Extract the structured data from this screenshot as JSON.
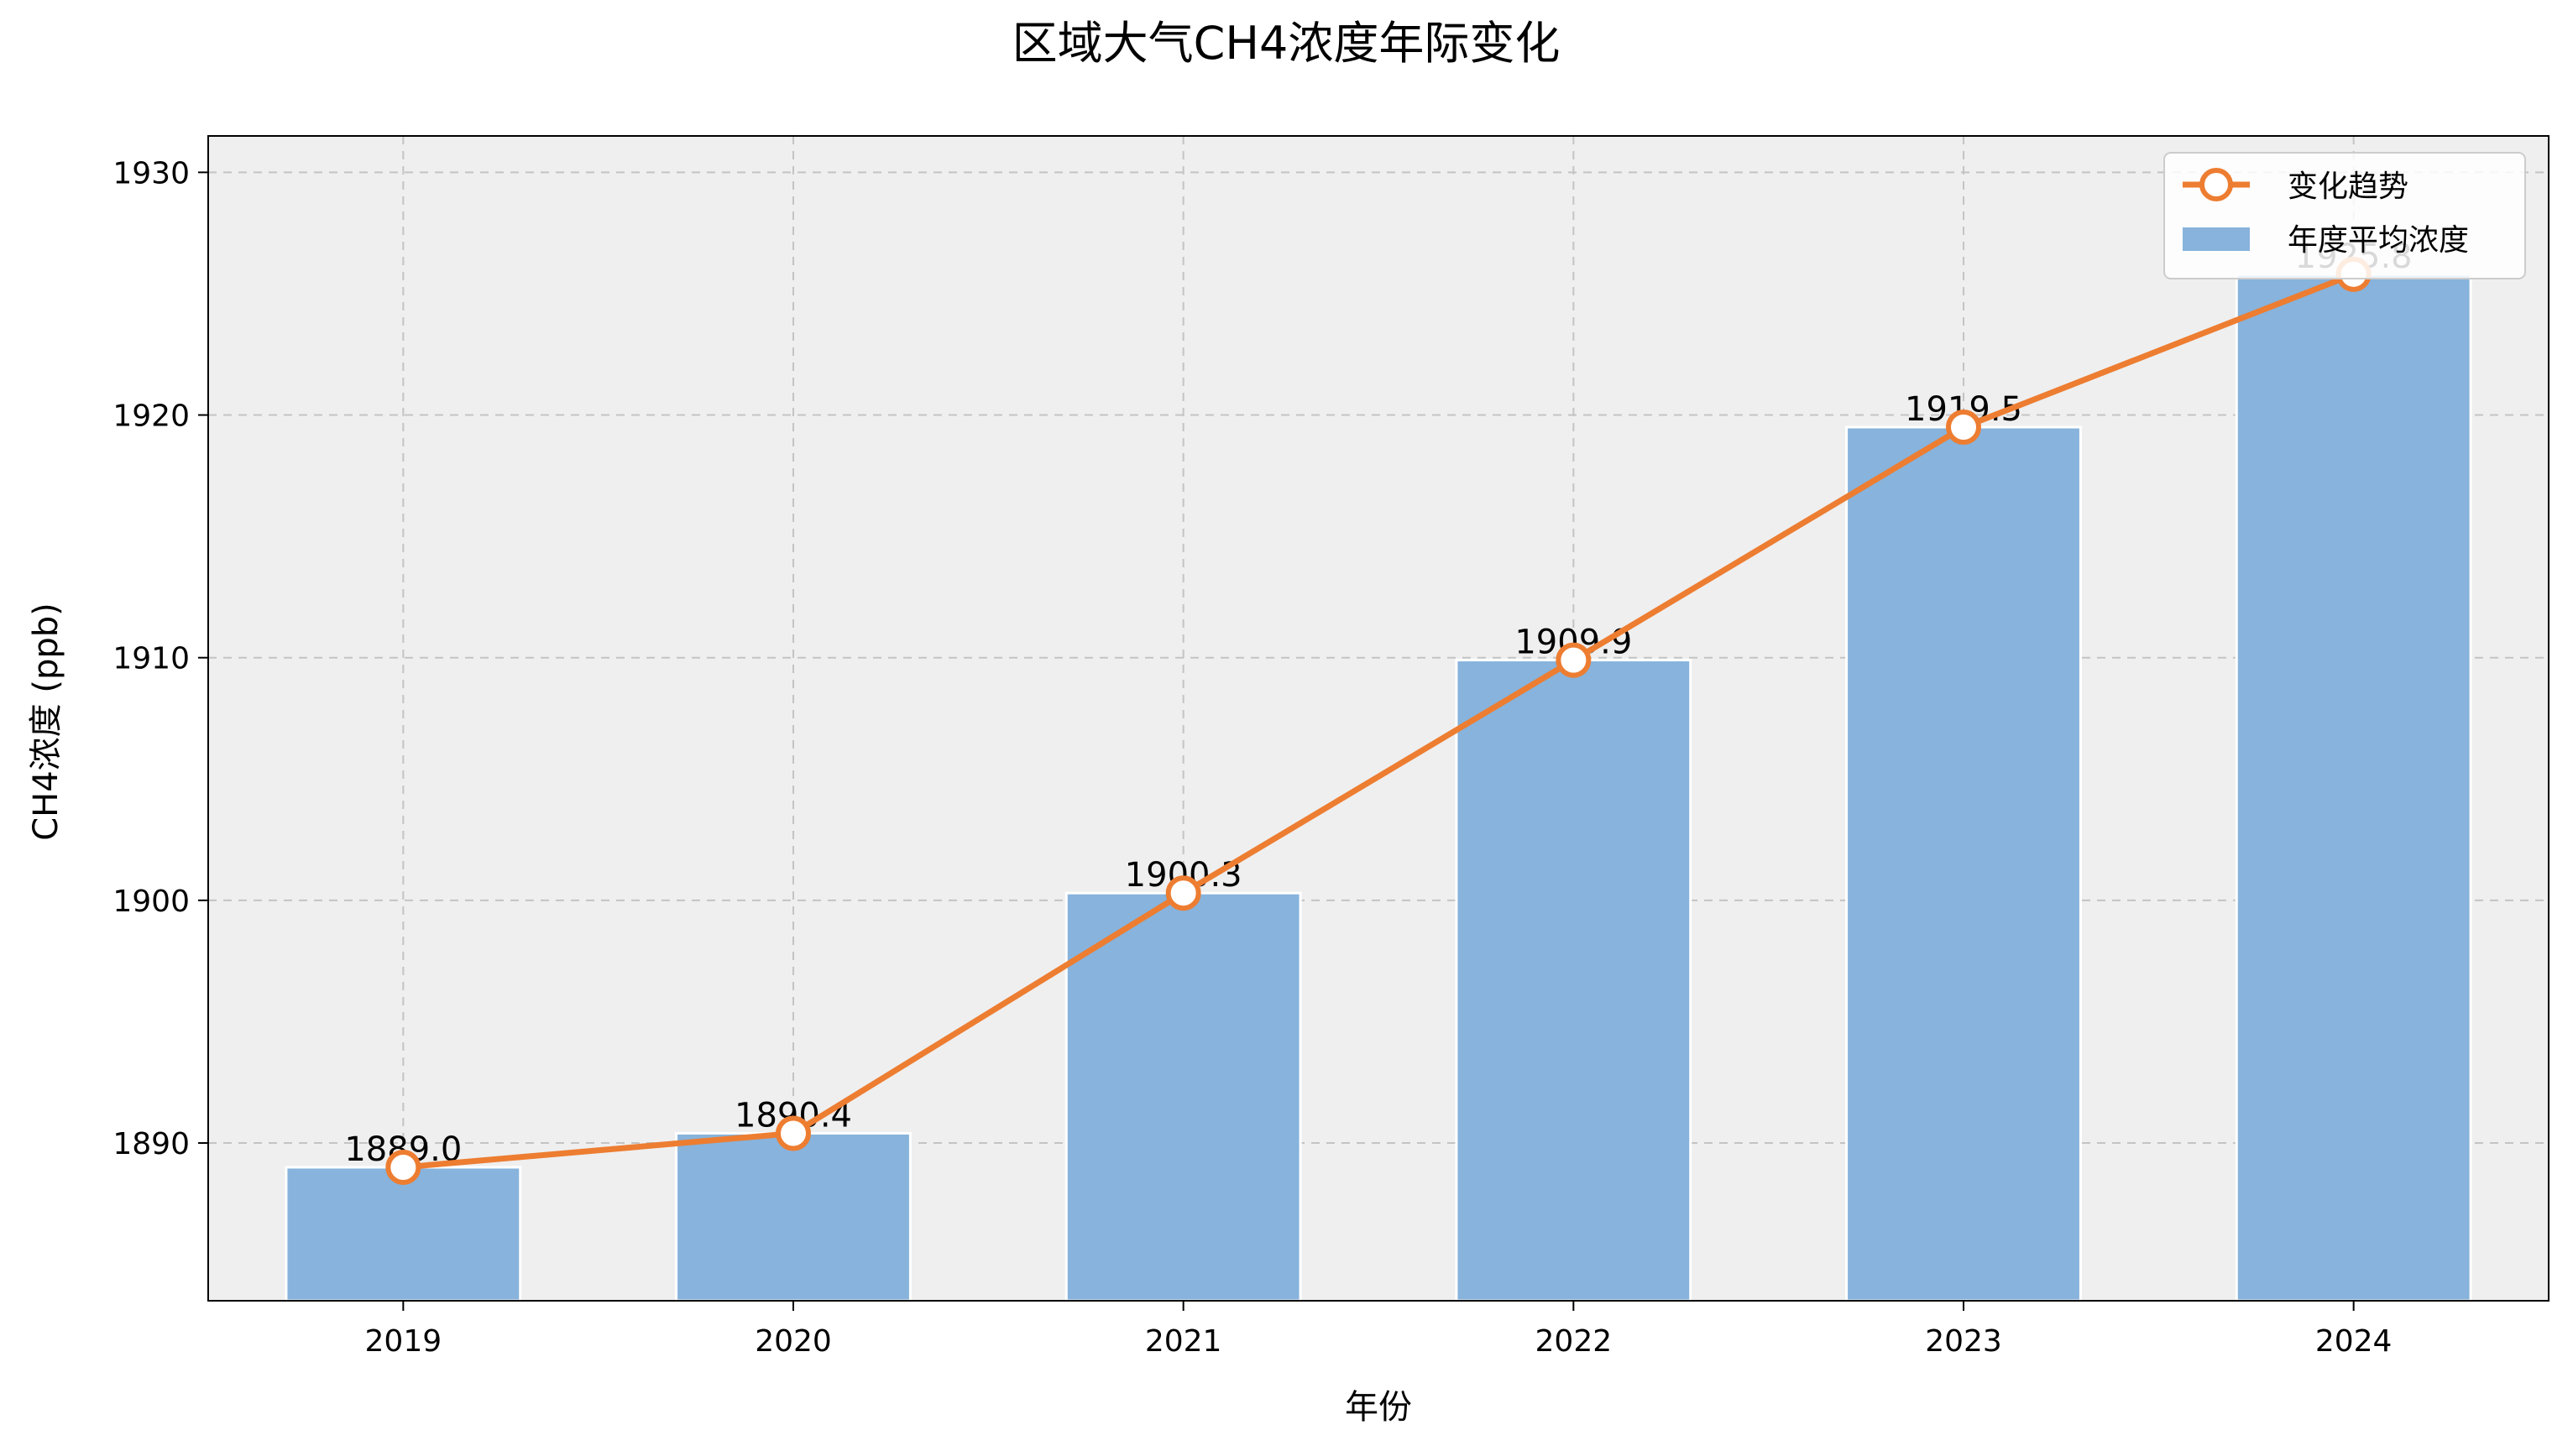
{
  "chart_data": {
    "type": "bar",
    "title": "区域大气CH4浓度年际变化",
    "xlabel": "年份",
    "ylabel": "CH4浓度 (ppb)",
    "categories": [
      "2019",
      "2020",
      "2021",
      "2022",
      "2023",
      "2024"
    ],
    "series": [
      {
        "name": "年度平均浓度",
        "type": "bar",
        "values": [
          1889.0,
          1890.4,
          1900.3,
          1909.9,
          1919.5,
          1925.8
        ],
        "labels": [
          "1889.0",
          "1890.4",
          "1900.3",
          "1909.9",
          "1919.5",
          "1925.8"
        ],
        "color": "#87b3dc"
      },
      {
        "name": "变化趋势",
        "type": "line",
        "values": [
          1889.0,
          1890.4,
          1900.3,
          1909.9,
          1919.5,
          1925.8
        ],
        "color": "#ed7d31"
      }
    ],
    "ylim": [
      1883.5,
      1931.5
    ],
    "yticks": [
      "1890",
      "1900",
      "1910",
      "1920",
      "1930"
    ],
    "grid": true,
    "legend_position": "top-right",
    "background": "#efefef"
  }
}
